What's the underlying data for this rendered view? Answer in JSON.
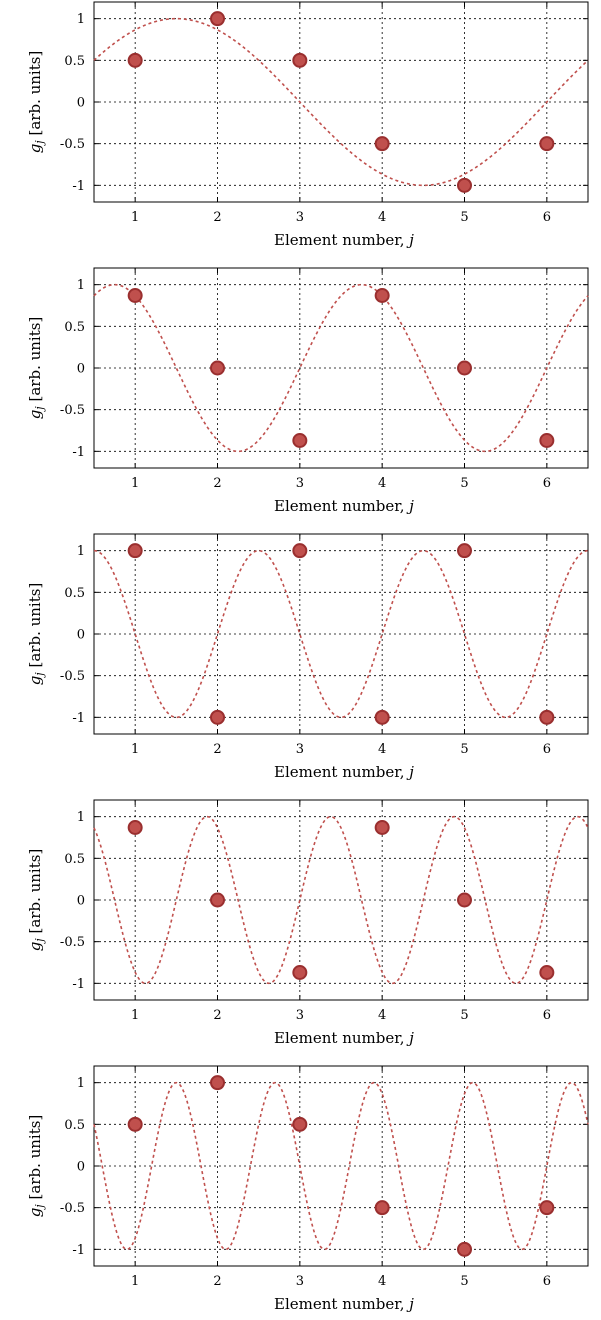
{
  "chart_data": [
    {
      "type": "scatter",
      "xlabel_text": "Element number, ",
      "xlabel_var": "j",
      "ylabel_var": "g",
      "ylabel_sub": "j",
      "ylabel_text": " [arb. units]",
      "xlim": [
        0.5,
        6.5
      ],
      "ylim": [
        -1.2,
        1.2
      ],
      "xticks": [
        1,
        2,
        3,
        4,
        5,
        6
      ],
      "yticks": [
        1,
        0.5,
        0,
        -0.5,
        -1
      ],
      "ytick_labels": [
        "1",
        "0.5",
        "0",
        "-0.5",
        "-1"
      ],
      "grid": true,
      "series": [
        {
          "type": "scatter",
          "x": [
            1,
            2,
            3,
            4,
            5,
            6
          ],
          "y": [
            0.5,
            1,
            0.5,
            -0.5,
            -1,
            -0.5
          ]
        },
        {
          "type": "line",
          "style": "dotted",
          "frequency_index": 1
        }
      ]
    },
    {
      "type": "scatter",
      "xlabel_text": "Element number, ",
      "xlabel_var": "j",
      "ylabel_var": "g",
      "ylabel_sub": "j",
      "ylabel_text": " [arb. units]",
      "xlim": [
        0.5,
        6.5
      ],
      "ylim": [
        -1.2,
        1.2
      ],
      "xticks": [
        1,
        2,
        3,
        4,
        5,
        6
      ],
      "yticks": [
        1,
        0.5,
        0,
        -0.5,
        -1
      ],
      "ytick_labels": [
        "1",
        "0.5",
        "0",
        "-0.5",
        "-1"
      ],
      "grid": true,
      "series": [
        {
          "type": "scatter",
          "x": [
            1,
            2,
            3,
            4,
            5,
            6
          ],
          "y": [
            0.87,
            0,
            -0.87,
            0.87,
            0,
            -0.87
          ]
        },
        {
          "type": "line",
          "style": "dotted",
          "frequency_index": 2
        }
      ]
    },
    {
      "type": "scatter",
      "xlabel_text": "Element number, ",
      "xlabel_var": "j",
      "ylabel_var": "g",
      "ylabel_sub": "j",
      "ylabel_text": " [arb. units]",
      "xlim": [
        0.5,
        6.5
      ],
      "ylim": [
        -1.2,
        1.2
      ],
      "xticks": [
        1,
        2,
        3,
        4,
        5,
        6
      ],
      "yticks": [
        1,
        0.5,
        0,
        -0.5,
        -1
      ],
      "ytick_labels": [
        "1",
        "0.5",
        "0",
        "-0.5",
        "-1"
      ],
      "grid": true,
      "series": [
        {
          "type": "scatter",
          "x": [
            1,
            2,
            3,
            4,
            5,
            6
          ],
          "y": [
            1,
            -1,
            1,
            -1,
            1,
            -1
          ]
        },
        {
          "type": "line",
          "style": "dotted",
          "frequency_index": 3
        }
      ]
    },
    {
      "type": "scatter",
      "xlabel_text": "Element number, ",
      "xlabel_var": "j",
      "ylabel_var": "g",
      "ylabel_sub": "j",
      "ylabel_text": " [arb. units]",
      "xlim": [
        0.5,
        6.5
      ],
      "ylim": [
        -1.2,
        1.2
      ],
      "xticks": [
        1,
        2,
        3,
        4,
        5,
        6
      ],
      "yticks": [
        1,
        0.5,
        0,
        -0.5,
        -1
      ],
      "ytick_labels": [
        "1",
        "0.5",
        "0",
        "-0.5",
        "-1"
      ],
      "grid": true,
      "series": [
        {
          "type": "scatter",
          "x": [
            1,
            2,
            3,
            4,
            5,
            6
          ],
          "y": [
            0.87,
            0,
            -0.87,
            0.87,
            0,
            -0.87
          ]
        },
        {
          "type": "line",
          "style": "dotted",
          "frequency_index": 4
        }
      ]
    },
    {
      "type": "scatter",
      "xlabel_text": "Element number, ",
      "xlabel_var": "j",
      "ylabel_var": "g",
      "ylabel_sub": "j",
      "ylabel_text": " [arb. units]",
      "xlim": [
        0.5,
        6.5
      ],
      "ylim": [
        -1.2,
        1.2
      ],
      "xticks": [
        1,
        2,
        3,
        4,
        5,
        6
      ],
      "yticks": [
        1,
        0.5,
        0,
        -0.5,
        -1
      ],
      "ytick_labels": [
        "1",
        "0.5",
        "0",
        "-0.5",
        "-1"
      ],
      "grid": true,
      "series": [
        {
          "type": "scatter",
          "x": [
            1,
            2,
            3,
            4,
            5,
            6
          ],
          "y": [
            0.5,
            1,
            0.5,
            -0.5,
            -1,
            -0.5
          ]
        },
        {
          "type": "line",
          "style": "dotted",
          "frequency_index": 5
        }
      ]
    }
  ]
}
